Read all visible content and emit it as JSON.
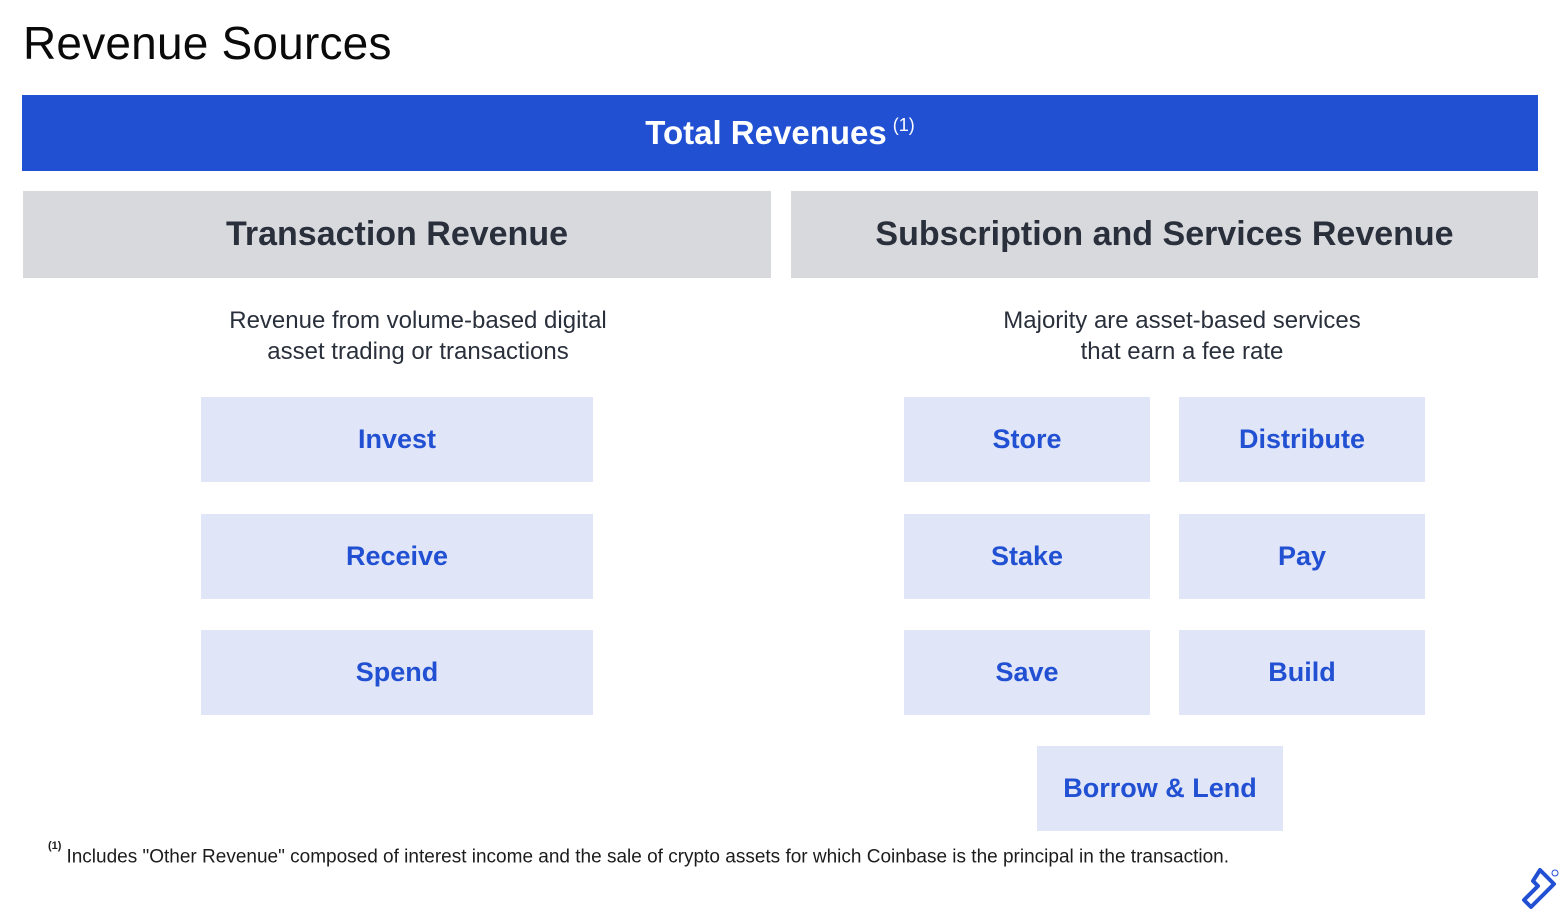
{
  "title": "Revenue Sources",
  "total": {
    "label": "Total Revenues",
    "note_ref": "(1)"
  },
  "left_section": {
    "header": "Transaction Revenue",
    "description_lines": [
      "Revenue from volume-based digital",
      "asset trading or transactions"
    ],
    "items": [
      "Invest",
      "Receive",
      "Spend"
    ]
  },
  "right_section": {
    "header": "Subscription and Services Revenue",
    "description_lines": [
      "Majority are asset-based services",
      "that earn a fee rate"
    ],
    "items": [
      "Store",
      "Distribute",
      "Stake",
      "Pay",
      "Save",
      "Build",
      "Borrow & Lend"
    ]
  },
  "footnote": {
    "marker": "(1)",
    "text": "Includes \"Other Revenue\" composed of interest income and the sale of crypto assets for which Coinbase is the principal in the transaction."
  },
  "colors": {
    "accent_blue": "#2150d3",
    "header_gray": "#d8d9dd",
    "tile_bg": "#e0e5f7",
    "text_dark": "#2a303b"
  },
  "icons": {
    "logo": "toptal-logo-icon"
  }
}
